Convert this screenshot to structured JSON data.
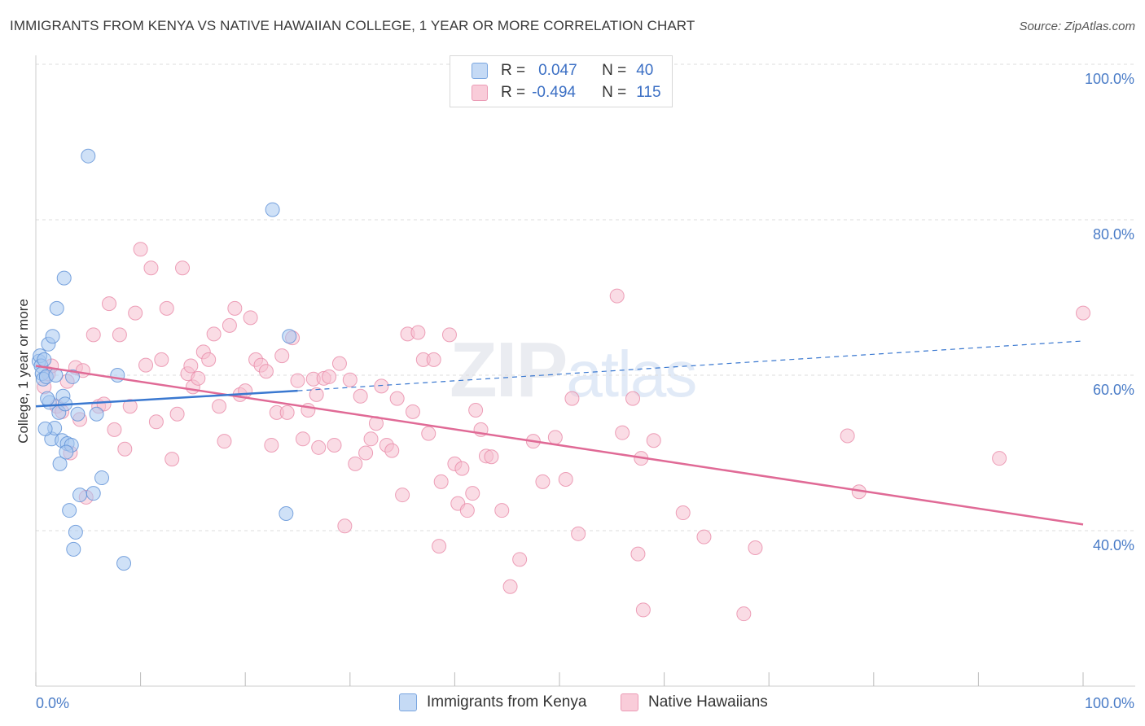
{
  "title": "IMMIGRANTS FROM KENYA VS NATIVE HAWAIIAN COLLEGE, 1 YEAR OR MORE CORRELATION CHART",
  "source": "Source: ZipAtlas.com",
  "watermark": {
    "zip": "ZIP",
    "atlas": "atlas"
  },
  "legend": {
    "r_label": "R =",
    "n_label": "N =",
    "kenya": {
      "r": "0.047",
      "n": "40"
    },
    "hawaiian": {
      "r": "-0.494",
      "n": "115"
    }
  },
  "colors": {
    "kenya_fill": "#a8c8f0",
    "kenya_stroke": "#5b8fd6",
    "kenya_line": "#3a78d0",
    "hawaiian_fill": "#f6bfd0",
    "hawaiian_stroke": "#e88aa8",
    "hawaiian_line": "#e06a96",
    "tick_text": "#4a7cc7",
    "grid": "#dddddd"
  },
  "chart_data": {
    "type": "scatter",
    "title": "IMMIGRANTS FROM KENYA VS NATIVE HAWAIIAN COLLEGE, 1 YEAR OR MORE CORRELATION CHART",
    "xlabel": "",
    "ylabel": "College, 1 year or more",
    "xlim": [
      0,
      100
    ],
    "ylim": [
      20,
      104
    ],
    "x_tick_labels": [
      "0.0%",
      "100.0%"
    ],
    "y_ticks": [
      40,
      60,
      80,
      100
    ],
    "y_tick_labels": [
      "40.0%",
      "60.0%",
      "80.0%",
      "100.0%"
    ],
    "grid": true,
    "legend_position": "bottom",
    "series": [
      {
        "name": "Immigrants from Kenya",
        "points": [
          [
            0.3,
            61.8
          ],
          [
            0.4,
            62.5
          ],
          [
            0.5,
            61.2
          ],
          [
            0.6,
            60.2
          ],
          [
            0.7,
            59.5
          ],
          [
            0.8,
            62.0
          ],
          [
            1.0,
            59.8
          ],
          [
            1.2,
            64.0
          ],
          [
            1.3,
            56.5
          ],
          [
            1.5,
            51.8
          ],
          [
            1.6,
            65.0
          ],
          [
            1.8,
            53.2
          ],
          [
            1.9,
            60.0
          ],
          [
            2.0,
            68.6
          ],
          [
            2.2,
            55.2
          ],
          [
            2.3,
            48.6
          ],
          [
            2.5,
            51.6
          ],
          [
            2.6,
            57.3
          ],
          [
            2.7,
            72.5
          ],
          [
            2.8,
            56.3
          ],
          [
            3.0,
            51.2
          ],
          [
            3.2,
            42.6
          ],
          [
            3.4,
            51.0
          ],
          [
            3.5,
            59.8
          ],
          [
            3.6,
            37.6
          ],
          [
            3.8,
            39.8
          ],
          [
            4.0,
            55.0
          ],
          [
            4.2,
            44.6
          ],
          [
            5.0,
            88.2
          ],
          [
            5.5,
            44.8
          ],
          [
            5.8,
            55.0
          ],
          [
            6.3,
            46.8
          ],
          [
            7.8,
            60.0
          ],
          [
            8.4,
            35.8
          ],
          [
            22.6,
            81.3
          ],
          [
            23.9,
            42.2
          ],
          [
            24.2,
            65.0
          ],
          [
            1.1,
            57.0
          ],
          [
            2.9,
            50.1
          ],
          [
            0.9,
            53.1
          ]
        ],
        "trend": {
          "x": [
            0,
            25
          ],
          "y": [
            56.0,
            58.0
          ]
        },
        "trend_extension": {
          "x": [
            25,
            100
          ],
          "y": [
            58.0,
            64.4
          ]
        }
      },
      {
        "name": "Native Hawaiians",
        "points": [
          [
            0.8,
            58.5
          ],
          [
            1.2,
            60.2
          ],
          [
            1.5,
            61.2
          ],
          [
            2.0,
            56.0
          ],
          [
            2.5,
            55.3
          ],
          [
            3.0,
            59.2
          ],
          [
            3.3,
            50.0
          ],
          [
            3.8,
            61.0
          ],
          [
            4.2,
            54.3
          ],
          [
            4.8,
            44.3
          ],
          [
            5.5,
            65.2
          ],
          [
            6.0,
            56.0
          ],
          [
            6.5,
            56.3
          ],
          [
            7.0,
            69.2
          ],
          [
            7.5,
            53.0
          ],
          [
            8.0,
            65.2
          ],
          [
            8.5,
            50.5
          ],
          [
            9.0,
            56.0
          ],
          [
            9.5,
            68.0
          ],
          [
            10.0,
            76.2
          ],
          [
            10.5,
            61.3
          ],
          [
            11.0,
            73.8
          ],
          [
            11.5,
            54.0
          ],
          [
            12.0,
            62.0
          ],
          [
            12.5,
            68.6
          ],
          [
            13.0,
            49.2
          ],
          [
            13.5,
            55.0
          ],
          [
            14.0,
            73.8
          ],
          [
            14.5,
            60.2
          ],
          [
            15.0,
            58.5
          ],
          [
            15.5,
            59.6
          ],
          [
            16.0,
            63.0
          ],
          [
            16.5,
            62.0
          ],
          [
            17.0,
            65.3
          ],
          [
            17.5,
            56.0
          ],
          [
            18.0,
            51.5
          ],
          [
            18.5,
            66.4
          ],
          [
            19.0,
            68.6
          ],
          [
            19.5,
            57.5
          ],
          [
            20.0,
            58.0
          ],
          [
            20.5,
            67.4
          ],
          [
            21.0,
            62.0
          ],
          [
            21.5,
            61.3
          ],
          [
            22.0,
            60.5
          ],
          [
            22.5,
            51.0
          ],
          [
            23.0,
            55.2
          ],
          [
            23.5,
            62.5
          ],
          [
            24.0,
            55.2
          ],
          [
            24.5,
            64.8
          ],
          [
            25.0,
            59.3
          ],
          [
            25.5,
            51.8
          ],
          [
            26.0,
            55.5
          ],
          [
            26.5,
            59.5
          ],
          [
            27.0,
            50.7
          ],
          [
            27.5,
            59.6
          ],
          [
            28.0,
            59.8
          ],
          [
            28.5,
            51.0
          ],
          [
            29.0,
            61.5
          ],
          [
            29.5,
            40.6
          ],
          [
            30.0,
            59.4
          ],
          [
            30.5,
            48.6
          ],
          [
            31.0,
            57.3
          ],
          [
            31.5,
            50.0
          ],
          [
            32.0,
            51.8
          ],
          [
            32.5,
            53.8
          ],
          [
            33.0,
            58.6
          ],
          [
            33.5,
            51.0
          ],
          [
            34.0,
            50.3
          ],
          [
            34.5,
            57.0
          ],
          [
            35.0,
            44.6
          ],
          [
            35.5,
            65.3
          ],
          [
            36.0,
            55.3
          ],
          [
            36.5,
            65.5
          ],
          [
            37.0,
            62.0
          ],
          [
            37.5,
            52.5
          ],
          [
            38.0,
            62.0
          ],
          [
            38.5,
            38.0
          ],
          [
            38.7,
            46.3
          ],
          [
            39.5,
            65.2
          ],
          [
            40.0,
            48.6
          ],
          [
            40.3,
            43.5
          ],
          [
            40.7,
            48.0
          ],
          [
            41.2,
            42.6
          ],
          [
            41.7,
            44.8
          ],
          [
            42.0,
            55.5
          ],
          [
            42.5,
            53.0
          ],
          [
            43.0,
            49.6
          ],
          [
            43.5,
            49.5
          ],
          [
            44.5,
            42.6
          ],
          [
            45.3,
            32.8
          ],
          [
            46.2,
            36.3
          ],
          [
            47.5,
            51.5
          ],
          [
            48.4,
            46.3
          ],
          [
            49.6,
            52.0
          ],
          [
            50.6,
            46.6
          ],
          [
            51.2,
            57.0
          ],
          [
            51.8,
            39.6
          ],
          [
            55.5,
            70.2
          ],
          [
            56.0,
            52.6
          ],
          [
            57.0,
            57.0
          ],
          [
            57.5,
            37.0
          ],
          [
            57.8,
            49.3
          ],
          [
            58.0,
            29.8
          ],
          [
            59.0,
            51.6
          ],
          [
            61.8,
            42.3
          ],
          [
            63.8,
            39.2
          ],
          [
            67.6,
            29.3
          ],
          [
            68.7,
            37.8
          ],
          [
            77.5,
            52.2
          ],
          [
            78.6,
            45.0
          ],
          [
            92.0,
            49.3
          ],
          [
            100.0,
            68.0
          ],
          [
            4.5,
            60.6
          ],
          [
            14.8,
            61.2
          ],
          [
            26.8,
            57.5
          ]
        ],
        "trend": {
          "x": [
            0,
            100
          ],
          "y": [
            61.2,
            40.8
          ]
        }
      }
    ]
  },
  "bottom_legend": {
    "kenya": "Immigrants from Kenya",
    "hawaiian": "Native Hawaiians"
  }
}
